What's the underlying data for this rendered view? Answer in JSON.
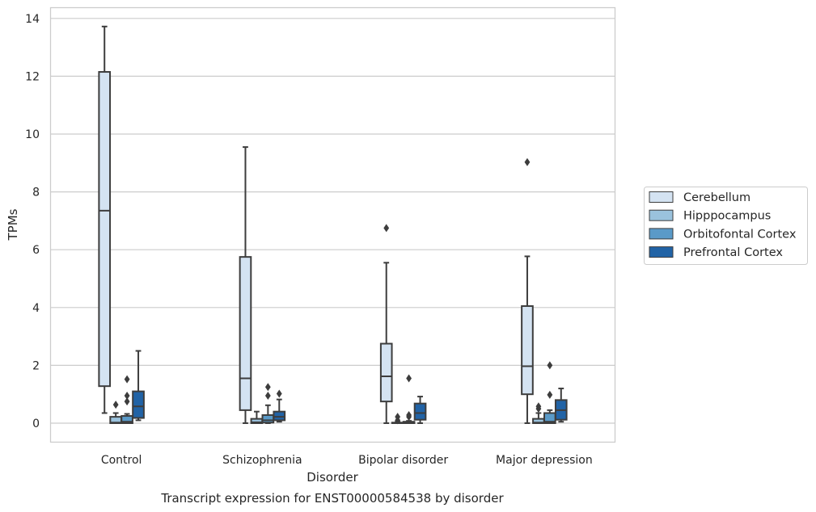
{
  "caption": "Transcript expression for ENST00000584538 by disorder",
  "chart_data": {
    "type": "box",
    "title": "",
    "xlabel": "Disorder",
    "ylabel": "TPMs",
    "ylim": [
      -0.65,
      14.4
    ],
    "yticks": [
      0,
      2,
      4,
      6,
      8,
      10,
      12,
      14
    ],
    "grid": "horizontal",
    "legend_position": "right",
    "categories": [
      "Control",
      "Schizophrenia",
      "Bipolar disorder",
      "Major depression"
    ],
    "series": [
      {
        "name": "Cerebellum",
        "color": "#d4e3f2",
        "boxes": [
          {
            "whislo": 0.35,
            "q1": 1.28,
            "med": 7.35,
            "q3": 12.15,
            "whishi": 13.72,
            "fliers": []
          },
          {
            "whislo": 0.0,
            "q1": 0.45,
            "med": 1.55,
            "q3": 5.75,
            "whishi": 9.55,
            "fliers": []
          },
          {
            "whislo": 0.0,
            "q1": 0.75,
            "med": 1.62,
            "q3": 2.75,
            "whishi": 5.55,
            "fliers": [
              6.75
            ]
          },
          {
            "whislo": 0.0,
            "q1": 1.0,
            "med": 1.97,
            "q3": 4.05,
            "whishi": 5.77,
            "fliers": [
              9.03
            ]
          }
        ]
      },
      {
        "name": "Hipppocampus",
        "color": "#9ac2dd",
        "boxes": [
          {
            "whislo": 0.0,
            "q1": 0.0,
            "med": 0.02,
            "q3": 0.22,
            "whishi": 0.35,
            "fliers": [
              0.64
            ]
          },
          {
            "whislo": 0.0,
            "q1": 0.0,
            "med": 0.03,
            "q3": 0.15,
            "whishi": 0.4,
            "fliers": []
          },
          {
            "whislo": 0.0,
            "q1": 0.0,
            "med": 0.0,
            "q3": 0.02,
            "whishi": 0.05,
            "fliers": [
              0.1,
              0.22
            ]
          },
          {
            "whislo": 0.0,
            "q1": 0.0,
            "med": 0.02,
            "q3": 0.15,
            "whishi": 0.35,
            "fliers": [
              0.5,
              0.58
            ]
          }
        ]
      },
      {
        "name": "Orbitofontal Cortex",
        "color": "#5a9ac8",
        "boxes": [
          {
            "whislo": 0.0,
            "q1": 0.0,
            "med": 0.05,
            "q3": 0.25,
            "whishi": 0.32,
            "fliers": [
              0.75,
              0.95,
              1.52
            ]
          },
          {
            "whislo": 0.0,
            "q1": 0.02,
            "med": 0.1,
            "q3": 0.28,
            "whishi": 0.62,
            "fliers": [
              0.95,
              1.25
            ]
          },
          {
            "whislo": 0.0,
            "q1": 0.0,
            "med": 0.01,
            "q3": 0.05,
            "whishi": 0.08,
            "fliers": [
              0.22,
              0.28,
              1.55
            ]
          },
          {
            "whislo": 0.0,
            "q1": 0.0,
            "med": 0.05,
            "q3": 0.35,
            "whishi": 0.45,
            "fliers": [
              0.98,
              2.0
            ]
          }
        ]
      },
      {
        "name": "Prefrontal Cortex",
        "color": "#2163a6",
        "boxes": [
          {
            "whislo": 0.1,
            "q1": 0.18,
            "med": 0.58,
            "q3": 1.1,
            "whishi": 2.5,
            "fliers": []
          },
          {
            "whislo": 0.05,
            "q1": 0.1,
            "med": 0.22,
            "q3": 0.4,
            "whishi": 0.82,
            "fliers": [
              1.02
            ]
          },
          {
            "whislo": 0.0,
            "q1": 0.12,
            "med": 0.35,
            "q3": 0.68,
            "whishi": 0.92,
            "fliers": []
          },
          {
            "whislo": 0.05,
            "q1": 0.12,
            "med": 0.45,
            "q3": 0.8,
            "whishi": 1.2,
            "fliers": []
          }
        ]
      }
    ]
  }
}
